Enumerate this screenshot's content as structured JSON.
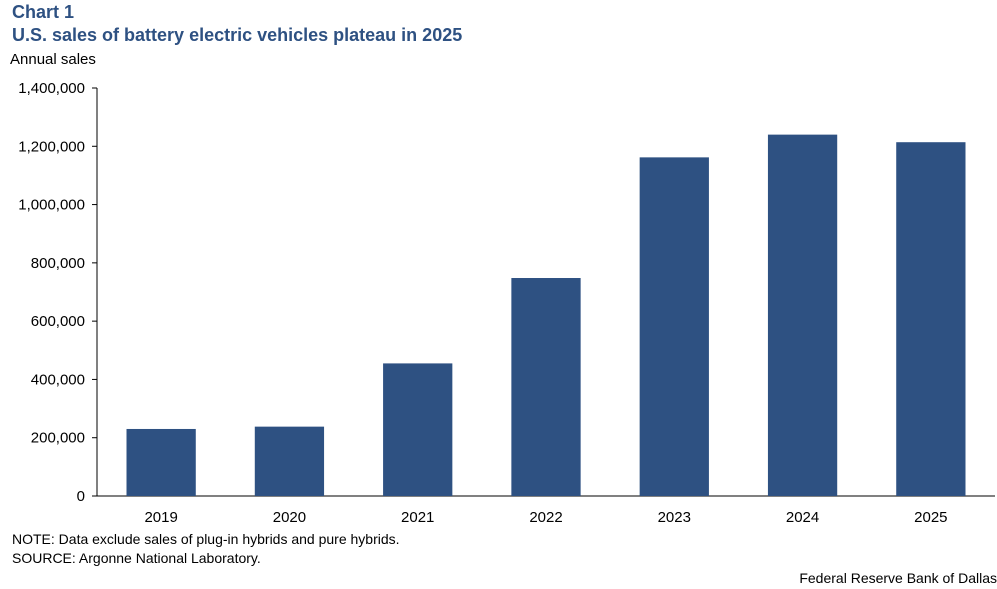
{
  "header": {
    "kicker": "Chart 1",
    "title": "U.S. sales of battery electric vehicles plateau in 2025",
    "units": "Annual sales"
  },
  "footer": {
    "note": "NOTE: Data exclude sales of plug-in hybrids and pure hybrids.",
    "source": "SOURCE: Argonne National Laboratory.",
    "credit": "Federal Reserve Bank of Dallas"
  },
  "colors": {
    "bar": "#2e5182",
    "axis": "#000000"
  },
  "chart_data": {
    "type": "bar",
    "title": "U.S. sales of battery electric vehicles plateau in 2025",
    "ylabel": "Annual sales",
    "xlabel": "",
    "categories": [
      "2019",
      "2020",
      "2021",
      "2022",
      "2023",
      "2024",
      "2025"
    ],
    "values": [
      230000,
      238000,
      455000,
      748000,
      1162000,
      1240000,
      1214000
    ],
    "ylim": [
      0,
      1400000
    ],
    "yticks": [
      0,
      200000,
      400000,
      600000,
      800000,
      1000000,
      1200000,
      1400000
    ],
    "ytick_labels": [
      "0",
      "200,000",
      "400,000",
      "600,000",
      "800,000",
      "1,000,000",
      "1,200,000",
      "1,400,000"
    ],
    "grid": false,
    "legend": "none"
  }
}
